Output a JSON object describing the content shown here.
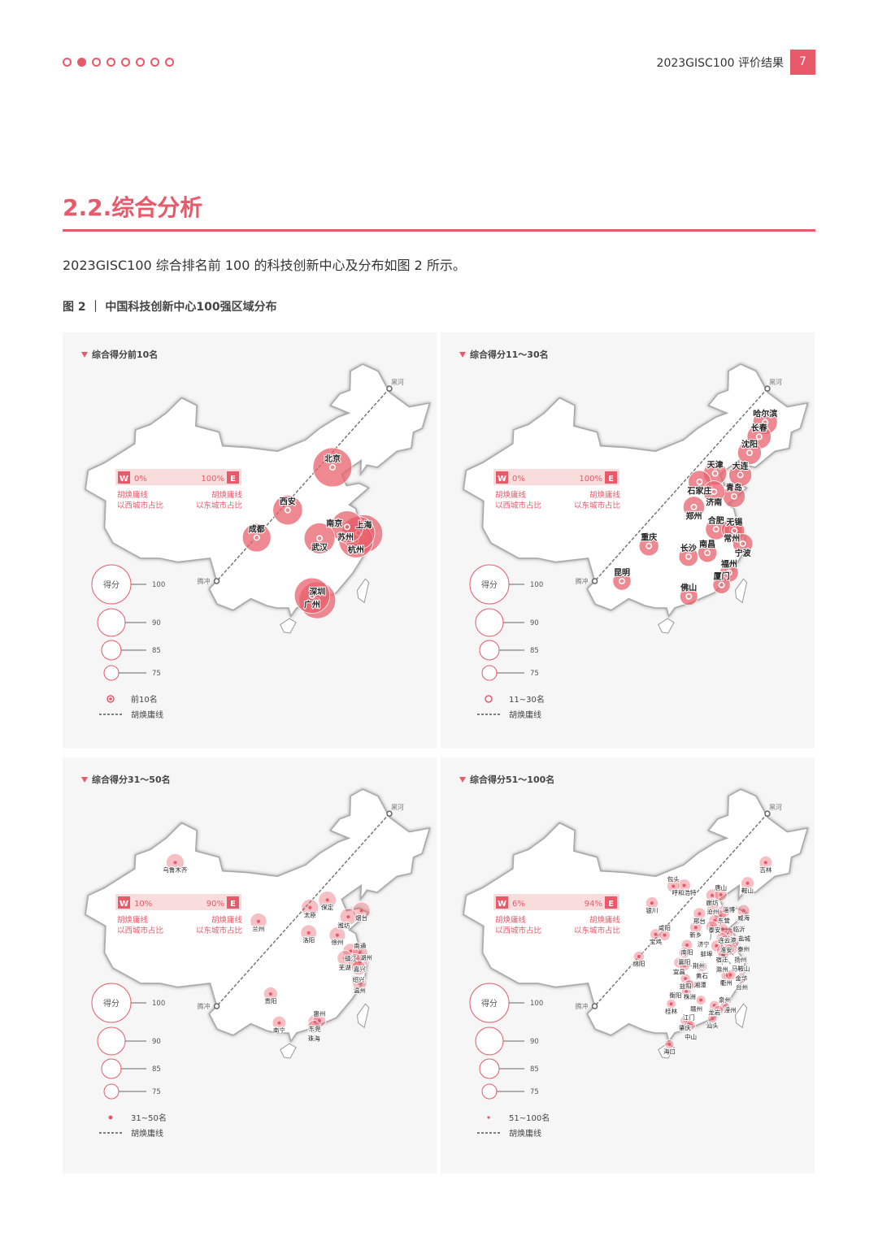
{
  "header": {
    "dots": [
      false,
      true,
      false,
      false,
      false,
      false,
      false,
      false
    ],
    "title": "2023GISC100 评价结果",
    "page_number": "7"
  },
  "section_title": "2.2.综合分析",
  "body_text": "2023GISC100 综合排名前 100 的科技创新中心及分布如图 2 所示。",
  "figure_caption": "图 2 ｜ 中国科技创新中心100强区域分布",
  "colors": {
    "accent": "#e8596a",
    "bubble": "#e8606c",
    "panel_bg": "#f6f6f6"
  },
  "map_labels": {
    "heihe": "黑河",
    "tengchong": "腾冲"
  },
  "panels": [
    {
      "title": "综合得分前10名",
      "w_badge": "W",
      "w_pct": "0%",
      "e_pct": "100%",
      "e_badge": "E",
      "w_label": [
        "胡焕庸线",
        "以西城市占比"
      ],
      "e_label": [
        "胡焕庸线",
        "以东城市占比"
      ],
      "size_legend": {
        "label": "得分",
        "ticks": [
          "100",
          "90",
          "85",
          "75"
        ]
      },
      "symbol_label": "前10名",
      "huline_label": "胡焕庸线",
      "cities": [
        "北京",
        "上海",
        "深圳",
        "广州",
        "杭州",
        "苏州",
        "南京",
        "武汉",
        "西安",
        "成都"
      ]
    },
    {
      "title": "综合得分11～30名",
      "w_badge": "W",
      "w_pct": "0%",
      "e_pct": "100%",
      "e_badge": "E",
      "w_label": [
        "胡焕庸线",
        "以西城市占比"
      ],
      "e_label": [
        "胡焕庸线",
        "以东城市占比"
      ],
      "size_legend": {
        "label": "得分",
        "ticks": [
          "100",
          "90",
          "85",
          "75"
        ]
      },
      "symbol_label": "11~30名",
      "huline_label": "胡焕庸线",
      "cities": [
        "哈尔滨",
        "长春",
        "沈阳",
        "天津",
        "大连",
        "石家庄",
        "青岛",
        "济南",
        "郑州",
        "合肥",
        "常州",
        "无锡",
        "宁波",
        "重庆",
        "长沙",
        "南昌",
        "福州",
        "昆明",
        "佛山",
        "厦门"
      ]
    },
    {
      "title": "综合得分31～50名",
      "w_badge": "W",
      "w_pct": "10%",
      "e_pct": "90%",
      "e_badge": "E",
      "w_label": [
        "胡焕庸线",
        "以西城市占比"
      ],
      "e_label": [
        "胡焕庸线",
        "以东城市占比"
      ],
      "size_legend": {
        "label": "得分",
        "ticks": [
          "100",
          "90",
          "85",
          "75"
        ]
      },
      "symbol_label": "31~50名",
      "huline_label": "胡焕庸线",
      "cities": [
        "乌鲁木齐",
        "保定",
        "烟台",
        "太原",
        "潍坊",
        "兰州",
        "徐州",
        "洛阳",
        "镇江",
        "南通",
        "芜湖",
        "嘉兴",
        "湖州",
        "绍兴",
        "温州",
        "贵阳",
        "南宁",
        "东莞",
        "惠州",
        "珠海"
      ]
    },
    {
      "title": "综合得分51～100名",
      "w_badge": "W",
      "w_pct": "6%",
      "e_pct": "94%",
      "e_badge": "E",
      "w_label": [
        "胡焕庸线",
        "以西城市占比"
      ],
      "e_label": [
        "胡焕庸线",
        "以东城市占比"
      ],
      "size_legend": {
        "label": "得分",
        "ticks": [
          "100",
          "90",
          "85",
          "75"
        ]
      },
      "symbol_label": "51~100名",
      "huline_label": "胡焕庸线",
      "cities": [
        "吉林",
        "鞍山",
        "呼和浩特",
        "包头",
        "廊坊",
        "唐山",
        "沧州",
        "东营",
        "威海",
        "银川",
        "邢台",
        "淄博",
        "新乡",
        "泰安",
        "连云港",
        "济宁",
        "临沂",
        "淮安",
        "宿迁",
        "盐城",
        "蚌埠",
        "泰州",
        "宝鸡",
        "咸阳",
        "南阳",
        "滁州",
        "扬州",
        "马鞍山",
        "襄阳",
        "绵阳",
        "宜昌",
        "荆州",
        "黄石",
        "衢州",
        "金华",
        "台州",
        "益阳",
        "湘潭",
        "株洲",
        "衡阳",
        "龙岩",
        "泉州",
        "赣州",
        "漳州",
        "桂林",
        "肇庆",
        "汕头",
        "江门",
        "中山",
        "海口"
      ]
    }
  ]
}
